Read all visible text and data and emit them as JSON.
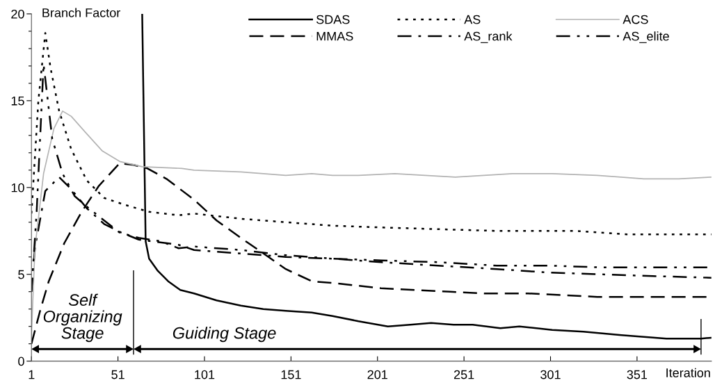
{
  "chart_data": {
    "type": "line",
    "ylabel": "Branch Factor",
    "xlabel": "Iteration",
    "xlim": [
      1,
      394
    ],
    "xticks": [
      1,
      51,
      101,
      151,
      201,
      251,
      301,
      351
    ],
    "ylim": [
      0,
      20
    ],
    "yticks": [
      0,
      {
        "value": 1,
        "label": null
      },
      {
        "value": 2,
        "label": null
      },
      {
        "value": 3,
        "label": null
      },
      {
        "value": 4,
        "label": null
      },
      5,
      {
        "value": 6,
        "label": null
      },
      {
        "value": 7,
        "label": null
      },
      {
        "value": 8,
        "label": null
      },
      {
        "value": 9,
        "label": null
      },
      10,
      {
        "value": 11,
        "label": null
      },
      {
        "value": 12,
        "label": null
      },
      {
        "value": 13,
        "label": null
      },
      {
        "value": 14,
        "label": null
      },
      15,
      {
        "value": 16,
        "label": null
      },
      {
        "value": 17,
        "label": null
      },
      {
        "value": 18,
        "label": null
      },
      {
        "value": 19,
        "label": null
      },
      20
    ],
    "grid": false,
    "legend": "top right",
    "marker": "none",
    "series": [
      {
        "name": "SDAS",
        "color": "#000000",
        "line_style": "solid",
        "x": [
          65,
          67,
          69,
          74,
          80,
          87,
          95,
          108,
          122,
          135,
          148,
          163,
          175,
          190,
          207,
          220,
          232,
          245,
          256,
          272,
          283,
          302,
          320,
          342,
          355,
          368,
          388,
          394
        ],
        "values": [
          20,
          6.9,
          5.9,
          5.2,
          4.6,
          4.1,
          3.9,
          3.5,
          3.2,
          3.0,
          2.9,
          2.8,
          2.6,
          2.3,
          2.0,
          2.1,
          2.2,
          2.1,
          2.1,
          1.9,
          2.0,
          1.8,
          1.7,
          1.5,
          1.4,
          1.3,
          1.3,
          1.35
        ]
      },
      {
        "name": "MMAS",
        "color": "#000000",
        "line_style": "dashed",
        "x": [
          1,
          6,
          11,
          20,
          30,
          40,
          52,
          60,
          68,
          79,
          95,
          108,
          122,
          138,
          148,
          163,
          175,
          203,
          243,
          263,
          288,
          328,
          368,
          394
        ],
        "values": [
          1.0,
          2.9,
          4.6,
          6.8,
          8.6,
          10.1,
          11.4,
          11.3,
          11.1,
          10.5,
          9.3,
          8.1,
          7.1,
          6.0,
          5.3,
          4.6,
          4.5,
          4.2,
          4.0,
          3.9,
          3.9,
          3.7,
          3.7,
          3.7
        ]
      },
      {
        "name": "AS",
        "color": "#000000",
        "line_style": "dotted",
        "x": [
          1,
          5,
          9,
          12,
          17,
          24,
          33,
          43,
          55,
          69,
          86,
          95,
          122,
          148,
          175,
          203,
          236,
          270,
          315,
          345,
          394
        ],
        "values": [
          8.5,
          15.0,
          18.9,
          16.9,
          14.4,
          12.2,
          10.4,
          9.4,
          9.0,
          8.6,
          8.4,
          8.5,
          8.2,
          8.0,
          7.8,
          7.7,
          7.6,
          7.5,
          7.5,
          7.3,
          7.3
        ]
      },
      {
        "name": "AS_rank",
        "color": "#000000",
        "line_style": "dashdot",
        "x": [
          1,
          3,
          9,
          17,
          24,
          33,
          43,
          53,
          63,
          86,
          95,
          122,
          148,
          175,
          203,
          236,
          270,
          300,
          330,
          360,
          394
        ],
        "values": [
          4.0,
          6.5,
          9.8,
          10.6,
          9.9,
          8.8,
          7.9,
          7.4,
          7.0,
          6.7,
          6.4,
          6.2,
          6.0,
          5.9,
          5.7,
          5.5,
          5.3,
          5.1,
          5.0,
          4.9,
          4.8
        ]
      },
      {
        "name": "ACS",
        "color": "#b3b3b3",
        "line_style": "solid",
        "x": [
          1,
          3,
          8,
          14,
          19,
          24,
          32,
          42,
          52,
          65,
          88,
          95,
          122,
          148,
          163,
          175,
          190,
          211,
          246,
          279,
          302,
          328,
          355,
          375,
          394
        ],
        "values": [
          1.5,
          6.5,
          10.8,
          13.4,
          14.4,
          14.1,
          13.2,
          12.1,
          11.5,
          11.2,
          11.1,
          11.0,
          10.9,
          10.7,
          10.8,
          10.7,
          10.7,
          10.8,
          10.6,
          10.8,
          10.8,
          10.7,
          10.5,
          10.5,
          10.6
        ]
      },
      {
        "name": "AS_elite",
        "color": "#000000",
        "line_style": "dashdotdot",
        "x": [
          1,
          4,
          8,
          10,
          13,
          19,
          26,
          33,
          43,
          52,
          63,
          76,
          86,
          95,
          122,
          148,
          175,
          203,
          236,
          270,
          300,
          330,
          360,
          394
        ],
        "values": [
          4.0,
          8.6,
          17.1,
          15.4,
          12.8,
          10.8,
          9.5,
          8.9,
          8.1,
          7.4,
          7.1,
          6.9,
          6.5,
          6.6,
          6.4,
          6.1,
          5.9,
          5.8,
          5.7,
          5.5,
          5.5,
          5.4,
          5.4,
          5.4
        ]
      }
    ],
    "ref_lines": [
      {
        "axis": "x",
        "value": 60
      },
      {
        "axis": "x",
        "value": 388
      }
    ],
    "annotations": [
      "Self\nOrganizing\nStage",
      "Guiding Stage"
    ]
  }
}
